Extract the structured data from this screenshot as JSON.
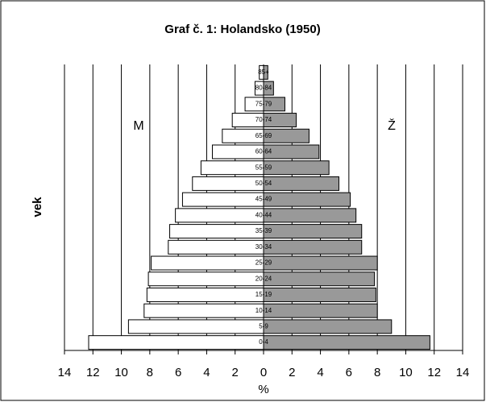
{
  "chart_data": {
    "type": "pyramid",
    "title": "Graf č. 1: Holandsko (1950)",
    "x_label": "%",
    "y_label": "vek",
    "categories": [
      "0-4",
      "5-9",
      "10-14",
      "15-19",
      "20-24",
      "25-29",
      "30-34",
      "35-39",
      "40-44",
      "45-49",
      "50-54",
      "55-59",
      "60-64",
      "65-69",
      "70-74",
      "75-79",
      "80-84",
      "85+"
    ],
    "series": [
      {
        "name": "M",
        "color": "#ffffff",
        "side": "left",
        "values": [
          12.3,
          9.5,
          8.4,
          8.2,
          8.1,
          7.9,
          6.7,
          6.6,
          6.2,
          5.7,
          5.0,
          4.4,
          3.6,
          2.9,
          2.2,
          1.3,
          0.6,
          0.3
        ]
      },
      {
        "name": "Ž",
        "color": "#999999",
        "side": "right",
        "values": [
          11.7,
          9.0,
          8.0,
          7.9,
          7.8,
          8.0,
          6.9,
          6.9,
          6.5,
          6.1,
          5.3,
          4.6,
          3.9,
          3.2,
          2.3,
          1.5,
          0.7,
          0.3
        ]
      }
    ],
    "xlim": [
      -14,
      14
    ],
    "xticks": [
      {
        "value": -14,
        "label": "14"
      },
      {
        "value": -12,
        "label": "12"
      },
      {
        "value": -10,
        "label": "10"
      },
      {
        "value": -8,
        "label": "8"
      },
      {
        "value": -6,
        "label": "6"
      },
      {
        "value": -4,
        "label": "4"
      },
      {
        "value": -2,
        "label": "2"
      },
      0,
      2,
      4,
      6,
      8,
      10,
      12,
      14
    ],
    "grid": true
  }
}
